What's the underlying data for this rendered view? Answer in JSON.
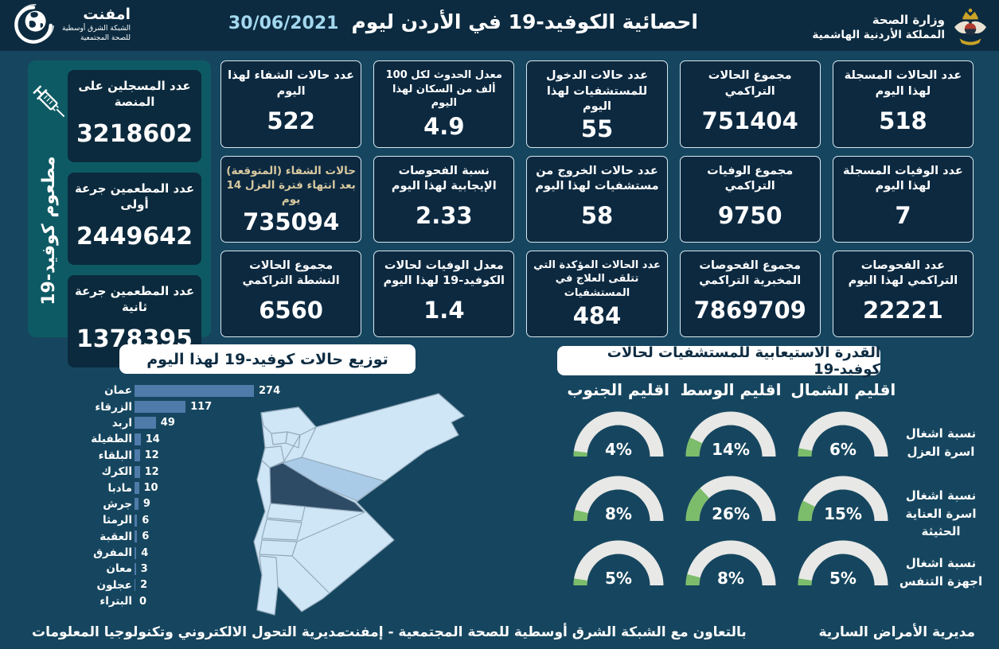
{
  "header": {
    "emphnet": {
      "name": "امفنت",
      "line1": "الشبكة الشرق أوسطية",
      "line2": "للصحة المجتمعية"
    },
    "title": "احصائية الكوفيد-19 في الأردن ليوم",
    "date": "30/06/2021",
    "ministry": {
      "line1": "وزارة الصحة",
      "line2": "المملكة الأردنية الهاشمية"
    }
  },
  "vaccination_panel": {
    "vertical_label": "مطعوم كوفيد-19",
    "cards": [
      {
        "label": "عدد المسجلين على المنصة",
        "value": "3218602"
      },
      {
        "label": "عدد المطعمين جرعة أولى",
        "value": "2449642"
      },
      {
        "label": "عدد المطعمين جرعة ثانية",
        "value": "1378395"
      }
    ]
  },
  "stat_columns": [
    {
      "cards": [
        {
          "label": "عدد الحالات المسجلة لهذا اليوم",
          "value": "518"
        },
        {
          "label": "عدد الوفيات المسجلة لهذا اليوم",
          "value": "7"
        },
        {
          "label": "عدد الفحوصات التراكمي لهذا اليوم",
          "value": "22221"
        }
      ]
    },
    {
      "cards": [
        {
          "label": "مجموع الحالات التراكمي",
          "value": "751404"
        },
        {
          "label": "مجموع الوفيات التراكمي",
          "value": "9750"
        },
        {
          "label": "مجموع الفحوصات المخبرية التراكمي",
          "value": "7869709"
        }
      ]
    },
    {
      "cards": [
        {
          "label": "عدد حالات الدخول للمستشفيات لهذا اليوم",
          "value": "55"
        },
        {
          "label": "عدد حالات الخروج من مستشفيات لهذا اليوم",
          "value": "58"
        },
        {
          "label": "عدد الحالات المؤكدة التي تتلقى العلاج في المستشفيات",
          "value": "484"
        }
      ]
    },
    {
      "cards": [
        {
          "label": "معدل الحدوث لكل 100 ألف من السكان لهذا اليوم",
          "value": "4.9"
        },
        {
          "label": "نسبة الفحوصات الإيجابية لهذا اليوم",
          "value": "2.33"
        },
        {
          "label": "معدل الوفيات لحالات الكوفيد-19 لهذا اليوم",
          "value": "1.4"
        }
      ]
    },
    {
      "cards": [
        {
          "label": "عدد حالات الشفاء لهذا اليوم",
          "value": "522"
        },
        {
          "label": "حالات الشفاء (المتوقعة) بعد انتهاء فترة العزل 14 يوم",
          "value": "735094",
          "accent": true
        },
        {
          "label": "مجموع الحالات النشطة التراكمي",
          "value": "6560"
        }
      ]
    }
  ],
  "chart_data": [
    {
      "type": "bar",
      "title": "توزيع حالات كوفيد-19 لهذا اليوم",
      "orientation": "horizontal",
      "categories": [
        "عمان",
        "الزرقاء",
        "اربد",
        "الطفيلة",
        "البلقاء",
        "الكرك",
        "مادبا",
        "جرش",
        "الرمثا",
        "العقبة",
        "المفرق",
        "معان",
        "عجلون",
        "البتراء"
      ],
      "values": [
        274,
        117,
        49,
        14,
        12,
        12,
        10,
        9,
        6,
        6,
        4,
        3,
        2,
        0
      ],
      "xlim": [
        0,
        280
      ]
    },
    {
      "type": "gauge-grid",
      "title": "القدرة الاستيعابية للمستشفيات لحالات كوفيد-19",
      "regions": [
        "اقليم الشمال",
        "اقليم الوسط",
        "اقليم الجنوب"
      ],
      "rows": [
        {
          "label": "نسبة اشغال اسرة العزل",
          "values": [
            6,
            14,
            4
          ]
        },
        {
          "label": "نسبة اشغال اسرة العناية الحثيثة",
          "values": [
            15,
            26,
            8
          ]
        },
        {
          "label": "نسبة اشغال اجهزة التنفس",
          "values": [
            5,
            8,
            5
          ]
        }
      ],
      "unit": "%"
    }
  ],
  "footer": {
    "right": "مديرية الأمراض السارية",
    "center": "بالتعاون مع الشبكة الشرق أوسطية للصحة المجتمعية - إمفنت",
    "left": "مديرية التحول الالكتروني وتكنولوجيا المعلومات"
  },
  "colors": {
    "page_bg": "#16465f",
    "header_bg": "#0c2b40",
    "card_bg": "#0c2940",
    "card_border": "#d8e8f0",
    "vax_panel_bg": "#0e5a64",
    "vax_card_bg": "#0b2a3d",
    "bar": "#4e7ba9",
    "accent_label": "#d9c9a0",
    "date": "#a3d8ef",
    "gauge_track": "#e8e8e6",
    "gauge_fill": "#7cbd6b",
    "pill_text": "#0e2c42",
    "map_light": "#cfe6f7",
    "map_medium": "#a9cbe8",
    "map_dark": "#2e4b66",
    "map_border": "#93a9ba"
  }
}
